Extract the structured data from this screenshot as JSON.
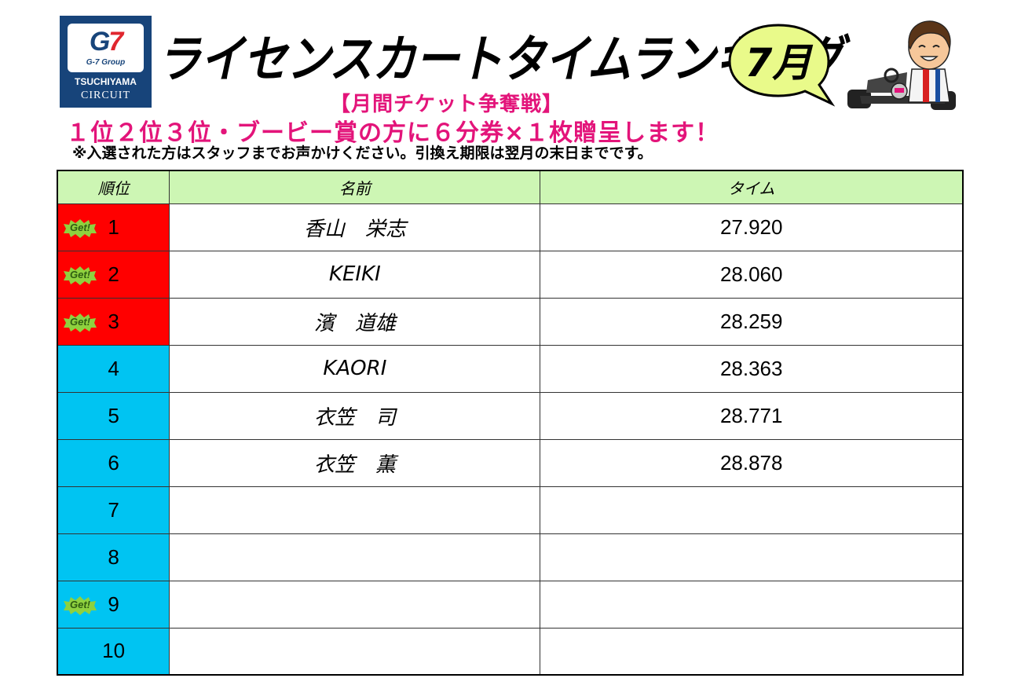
{
  "logo": {
    "brand_mark_g": "G",
    "brand_mark_7": "7",
    "group": "G-7 Group",
    "circuit_line1": "TSUCHIYAMA",
    "circuit_line2": "CIRCUIT"
  },
  "header": {
    "title": "ライセンスカートタイムランキング",
    "month": "7月",
    "subtitle": "【月間チケット争奪戦】",
    "prize": "１位２位３位・ブービー賞の方に６分券×１枚贈呈します！",
    "note": "※入選された方はスタッフまでお声かけください。引換え期限は翌月の末日までです。"
  },
  "table": {
    "headers": [
      "順位",
      "名前",
      "タイム"
    ],
    "badge_label": "Get!",
    "rows": [
      {
        "rank": "1",
        "name": "香山　栄志",
        "time": "27.920",
        "badge": true,
        "color": "#ff0000"
      },
      {
        "rank": "2",
        "name": "KEIKI",
        "time": "28.060",
        "badge": true,
        "color": "#ff0000"
      },
      {
        "rank": "3",
        "name": "濱　道雄",
        "time": "28.259",
        "badge": true,
        "color": "#ff0000"
      },
      {
        "rank": "4",
        "name": "KAORI",
        "time": "28.363",
        "badge": false,
        "color": "#00c4f2"
      },
      {
        "rank": "5",
        "name": "衣笠　司",
        "time": "28.771",
        "badge": false,
        "color": "#00c4f2"
      },
      {
        "rank": "6",
        "name": "衣笠　薫",
        "time": "28.878",
        "badge": false,
        "color": "#00c4f2"
      },
      {
        "rank": "7",
        "name": "",
        "time": "",
        "badge": false,
        "color": "#00c4f2"
      },
      {
        "rank": "8",
        "name": "",
        "time": "",
        "badge": false,
        "color": "#00c4f2"
      },
      {
        "rank": "9",
        "name": "",
        "time": "",
        "badge": true,
        "color": "#00c4f2"
      },
      {
        "rank": "10",
        "name": "",
        "time": "",
        "badge": false,
        "color": "#00c4f2"
      }
    ]
  },
  "colors": {
    "header_row": "#cdf6b4",
    "accent_pink": "#e3147a",
    "bubble_fill": "#e9fa8a",
    "badge_fill": "#8fd13f"
  }
}
